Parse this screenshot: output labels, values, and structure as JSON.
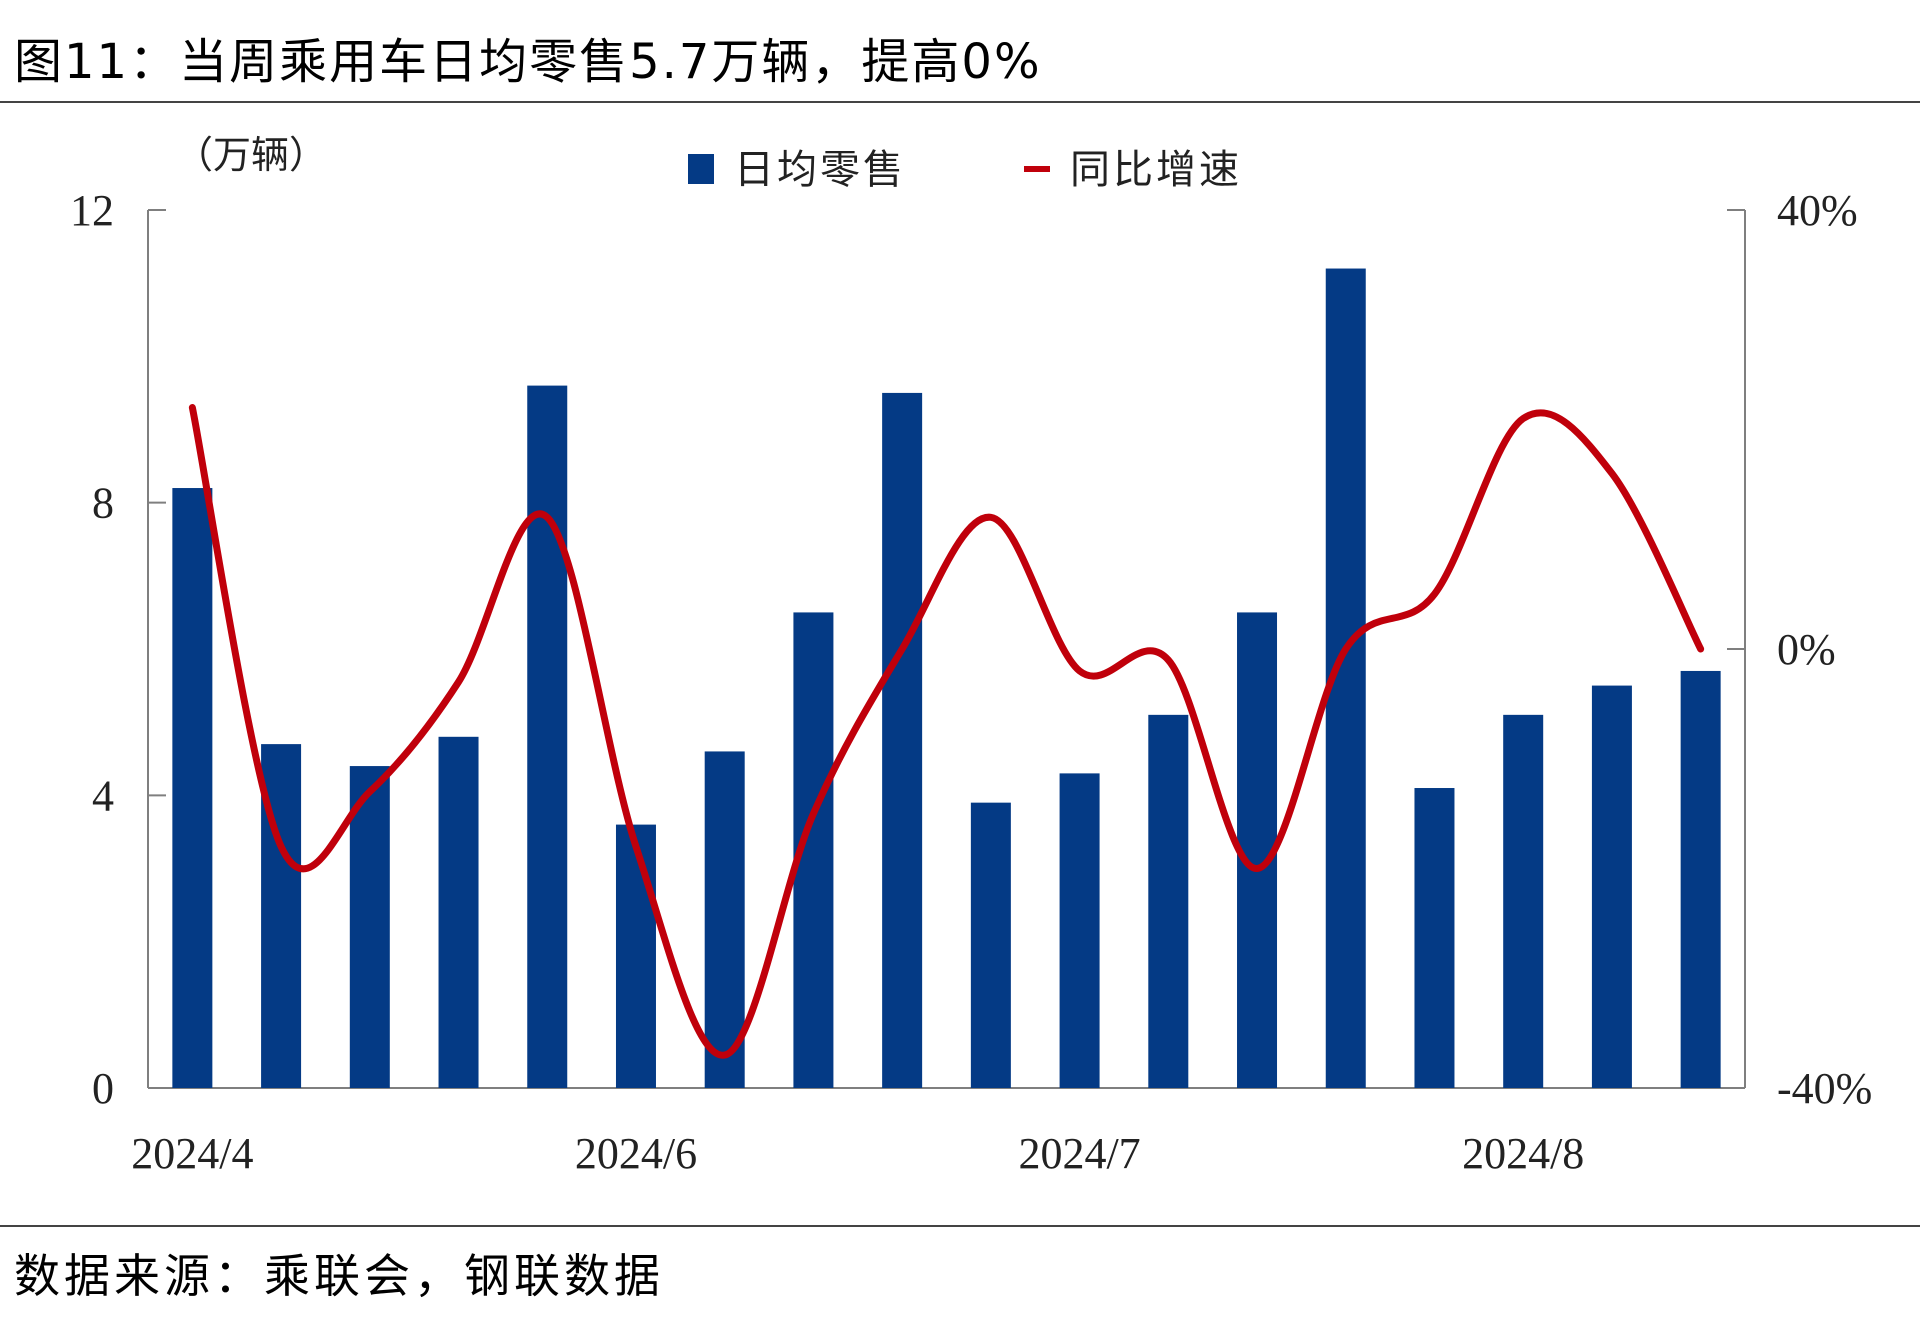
{
  "title": "图11：当周乘用车日均零售5.7万辆，提高0%",
  "source": "数据来源：乘联会，钢联数据",
  "colors": {
    "bar": "#043A85",
    "line": "#C0000B",
    "axis": "#7F7F7F"
  },
  "chart_data": {
    "type": "bar+line",
    "left_unit": "（万辆）",
    "left_ylim": [
      0,
      12
    ],
    "left_ticks": [
      "0",
      "4",
      "8",
      "12"
    ],
    "right_ylim": [
      -40,
      40
    ],
    "right_ticks": [
      "-40%",
      "0%",
      "40%"
    ],
    "x_tick_labels": [
      {
        "index": 0,
        "label": "2024/4"
      },
      {
        "index": 5,
        "label": "2024/6"
      },
      {
        "index": 10,
        "label": "2024/7"
      },
      {
        "index": 15,
        "label": "2024/8"
      }
    ],
    "legend": {
      "bar": "日均零售",
      "line": "同比增速"
    },
    "series": [
      {
        "name": "日均零售",
        "axis": "left",
        "values": [
          8.2,
          4.7,
          4.4,
          4.8,
          9.6,
          3.6,
          4.6,
          6.5,
          9.5,
          3.9,
          4.3,
          5.1,
          6.5,
          11.2,
          4.1,
          5.1,
          5.5,
          5.7
        ]
      },
      {
        "name": "同比增速",
        "axis": "right",
        "values": [
          22,
          -18,
          -13,
          -3,
          12,
          -18,
          -37,
          -15,
          0,
          12,
          -2,
          -1,
          -20,
          0,
          5,
          21,
          16,
          0
        ]
      }
    ]
  }
}
